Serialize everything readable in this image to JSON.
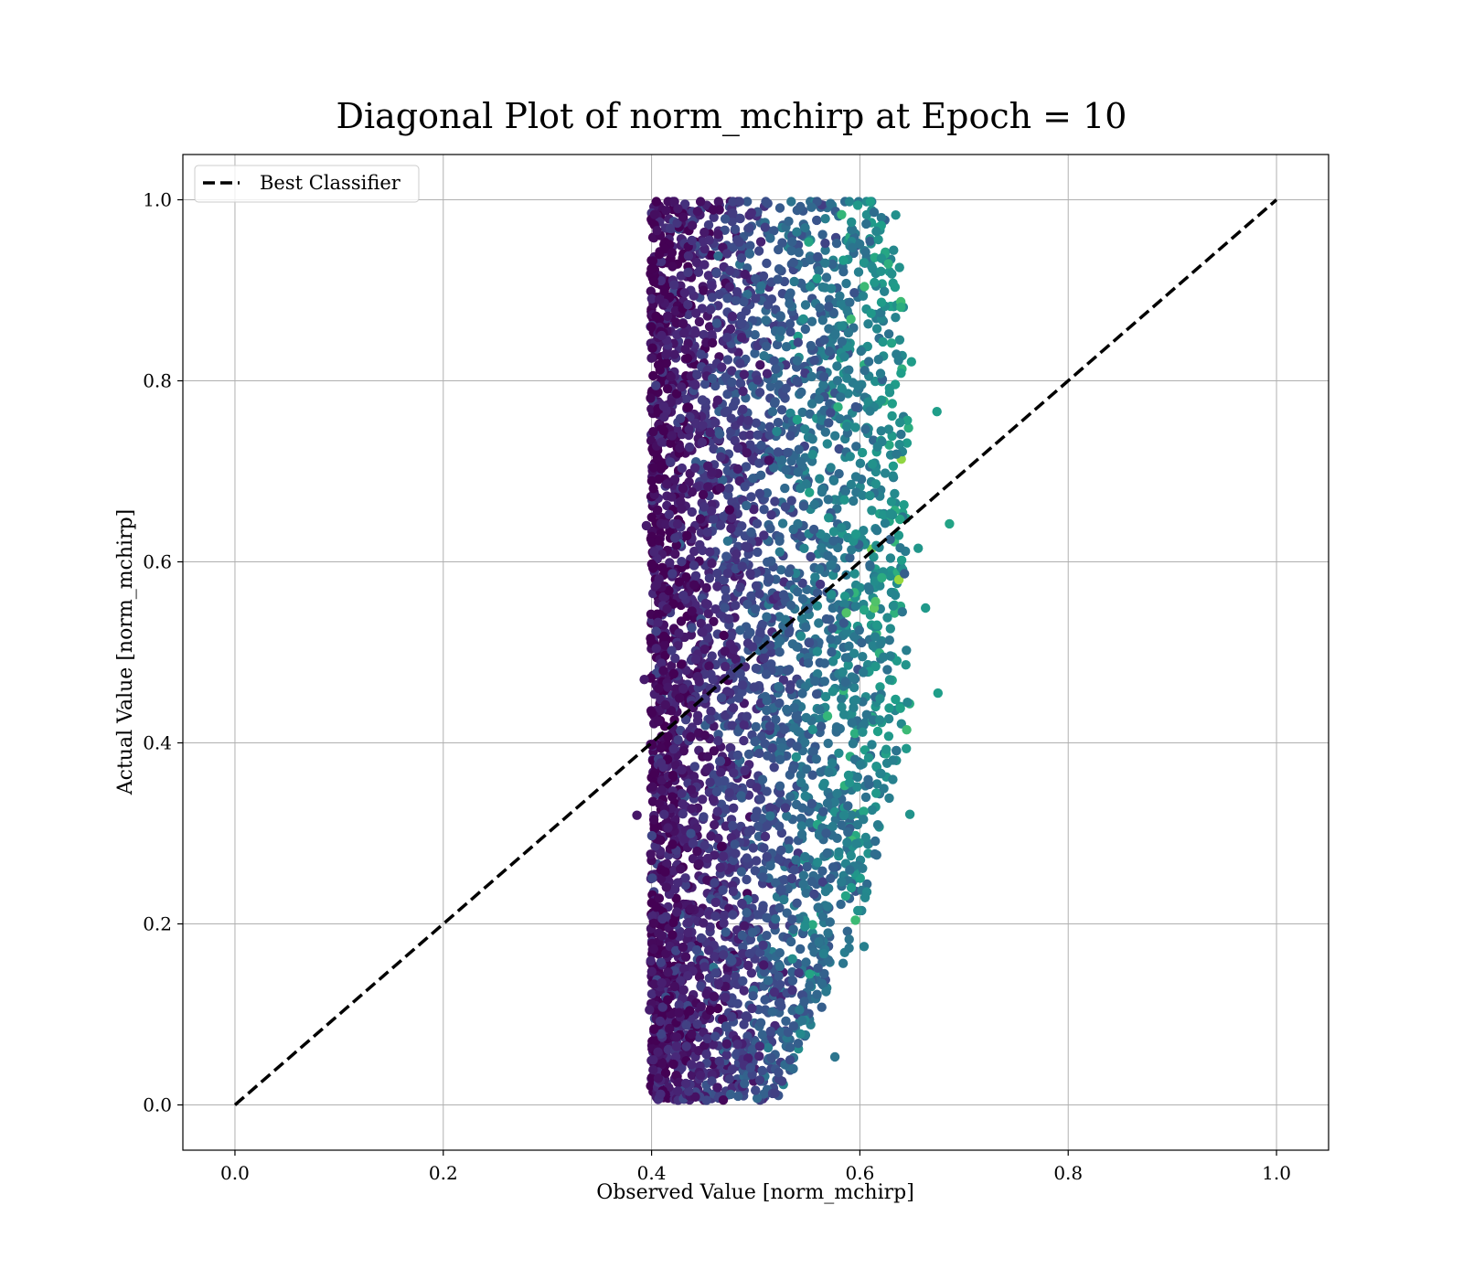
{
  "chart_data": {
    "type": "scatter",
    "title": "Diagonal Plot of norm_mchirp at Epoch = 10",
    "xlabel": "Observed Value [norm_mchirp]",
    "ylabel": "Actual Value [norm_mchirp]",
    "xlim": [
      -0.05,
      1.05
    ],
    "ylim": [
      -0.05,
      1.05
    ],
    "xticks": [
      0.0,
      0.2,
      0.4,
      0.6,
      0.8,
      1.0
    ],
    "yticks": [
      0.0,
      0.2,
      0.4,
      0.6,
      0.8,
      1.0
    ],
    "xtick_labels": [
      "0.0",
      "0.2",
      "0.4",
      "0.6",
      "0.8",
      "1.0"
    ],
    "ytick_labels": [
      "0.0",
      "0.2",
      "0.4",
      "0.6",
      "0.8",
      "1.0"
    ],
    "grid": true,
    "legend": {
      "placement": "top-left",
      "entries": [
        "Best Classifier"
      ]
    },
    "colormap": "viridis",
    "scatter_distribution": {
      "x_range": [
        0.4,
        0.69
      ],
      "y_range": [
        0.0,
        1.0
      ],
      "dense_x_range": [
        0.4,
        0.62
      ],
      "note_colors": "purple (low) at x≈0.4–0.5, teal/green (high) toward x≈0.6–0.68"
    },
    "series": [
      {
        "name": "Best Classifier",
        "type": "line",
        "style": "dashed",
        "color": "#000000",
        "x": [
          0.0,
          1.0
        ],
        "y": [
          0.0,
          1.0
        ]
      }
    ],
    "outlier_points": [
      {
        "x": 0.386,
        "y": 0.32
      },
      {
        "x": 0.393,
        "y": 0.47
      },
      {
        "x": 0.395,
        "y": 0.64
      },
      {
        "x": 0.398,
        "y": 0.105
      },
      {
        "x": 0.576,
        "y": 0.053
      },
      {
        "x": 0.604,
        "y": 0.175
      },
      {
        "x": 0.674,
        "y": 0.766
      },
      {
        "x": 0.675,
        "y": 0.455
      },
      {
        "x": 0.686,
        "y": 0.642
      },
      {
        "x": 0.663,
        "y": 0.549
      },
      {
        "x": 0.656,
        "y": 0.615
      },
      {
        "x": 0.648,
        "y": 0.321
      }
    ]
  }
}
